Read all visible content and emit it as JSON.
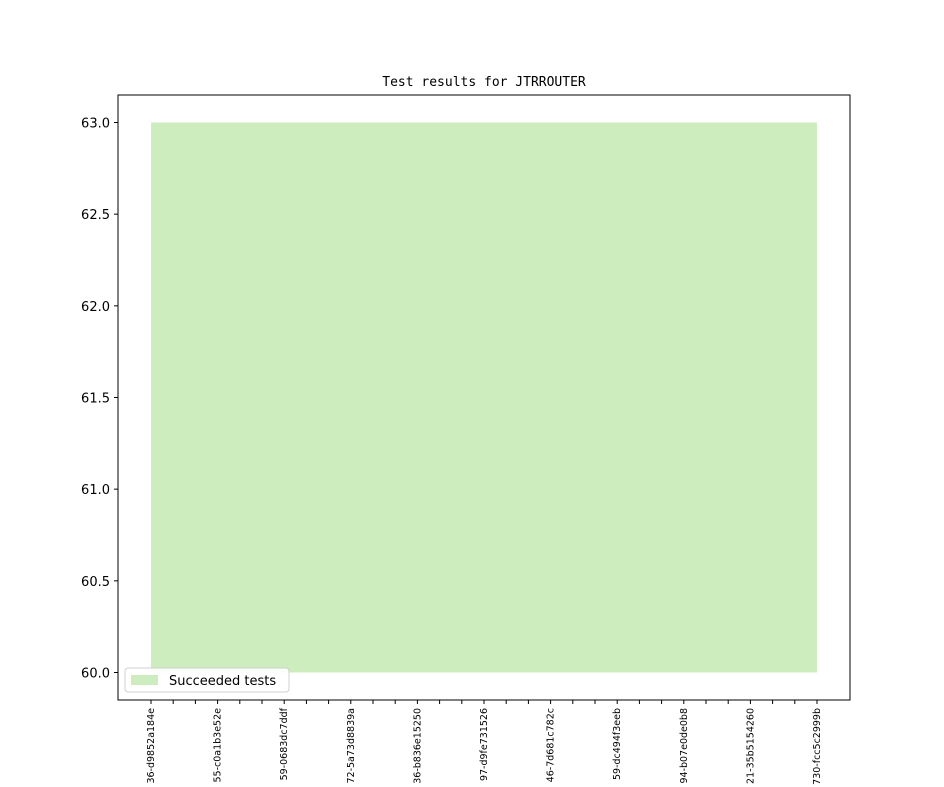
{
  "chart_data": {
    "type": "area",
    "title": "Test results for JTRROUTER",
    "categories": [
      "36-d9852a184e",
      null,
      null,
      "55-c0a1b3e52e",
      null,
      null,
      "59-0683dc7ddf",
      null,
      null,
      "72-5a73d8839a",
      null,
      null,
      "36-b836e15250",
      null,
      null,
      "97-d9fe731526",
      null,
      null,
      "46-7d681c782c",
      null,
      null,
      "59-dc494f3eeb",
      null,
      null,
      "94-b07e0de0b8",
      null,
      null,
      "21-35b5154260",
      null,
      null,
      "730-fcc5c2999b"
    ],
    "series": [
      {
        "name": "Succeeded tests",
        "color": "#ceedbf",
        "values": [
          63,
          63,
          63,
          63,
          63,
          63,
          63,
          63,
          63,
          63,
          63,
          63,
          63,
          63,
          63,
          63,
          63,
          63,
          63,
          63,
          63,
          63,
          63,
          63,
          63,
          63,
          63,
          63,
          63,
          63,
          63
        ]
      }
    ],
    "ylim": [
      59.85,
      63.15
    ],
    "yticks": [
      {
        "value": 60,
        "label": "60.0"
      },
      {
        "value": 60.5,
        "label": "60.5"
      },
      {
        "value": 61,
        "label": "61.0"
      },
      {
        "value": 61.5,
        "label": "61.5"
      },
      {
        "value": 62,
        "label": "62.0"
      },
      {
        "value": 62.5,
        "label": "62.5"
      },
      {
        "value": 63,
        "label": "63.0"
      }
    ],
    "legend": "lower left"
  }
}
